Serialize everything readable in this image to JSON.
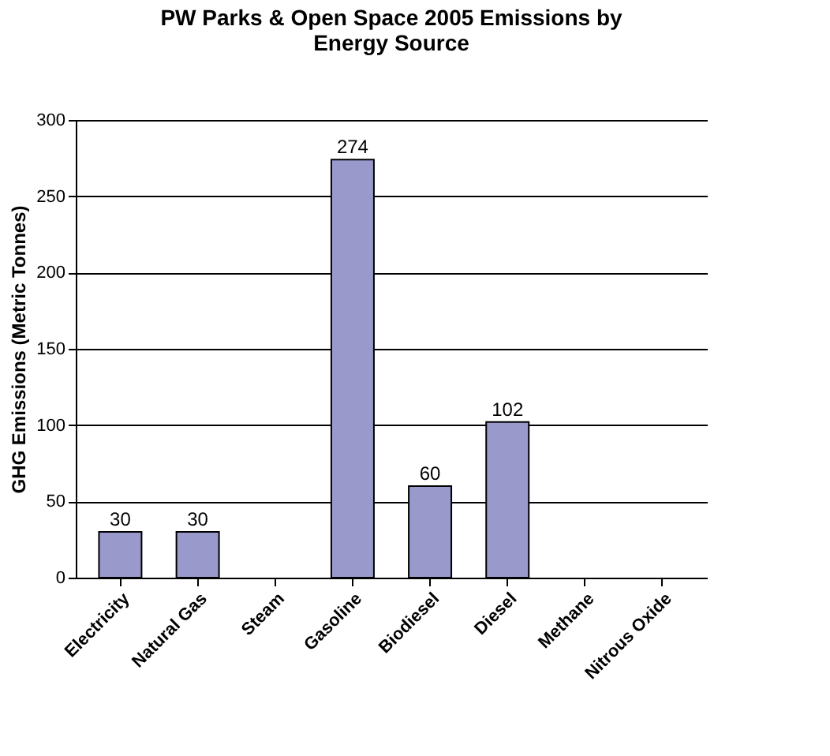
{
  "chart_data": {
    "type": "bar",
    "title": [
      "PW Parks & Open Space 2005 Emissions by",
      "Energy Source"
    ],
    "ylabel": "GHG Emissions (Metric Tonnes)",
    "categories": [
      "Electricity",
      "Natural Gas",
      "Steam",
      "Gasoline",
      "Biodiesel",
      "Diesel",
      "Methane",
      "Nitrous Oxide"
    ],
    "values": [
      30,
      30,
      null,
      274,
      60,
      102,
      null,
      null
    ],
    "value_labels": [
      "30",
      "30",
      null,
      "274",
      "60",
      "102",
      null,
      null
    ],
    "color": "#9999cc",
    "ylim": [
      0,
      300
    ],
    "yticks": [
      0,
      50,
      100,
      150,
      200,
      250,
      300
    ],
    "grid": "y"
  }
}
